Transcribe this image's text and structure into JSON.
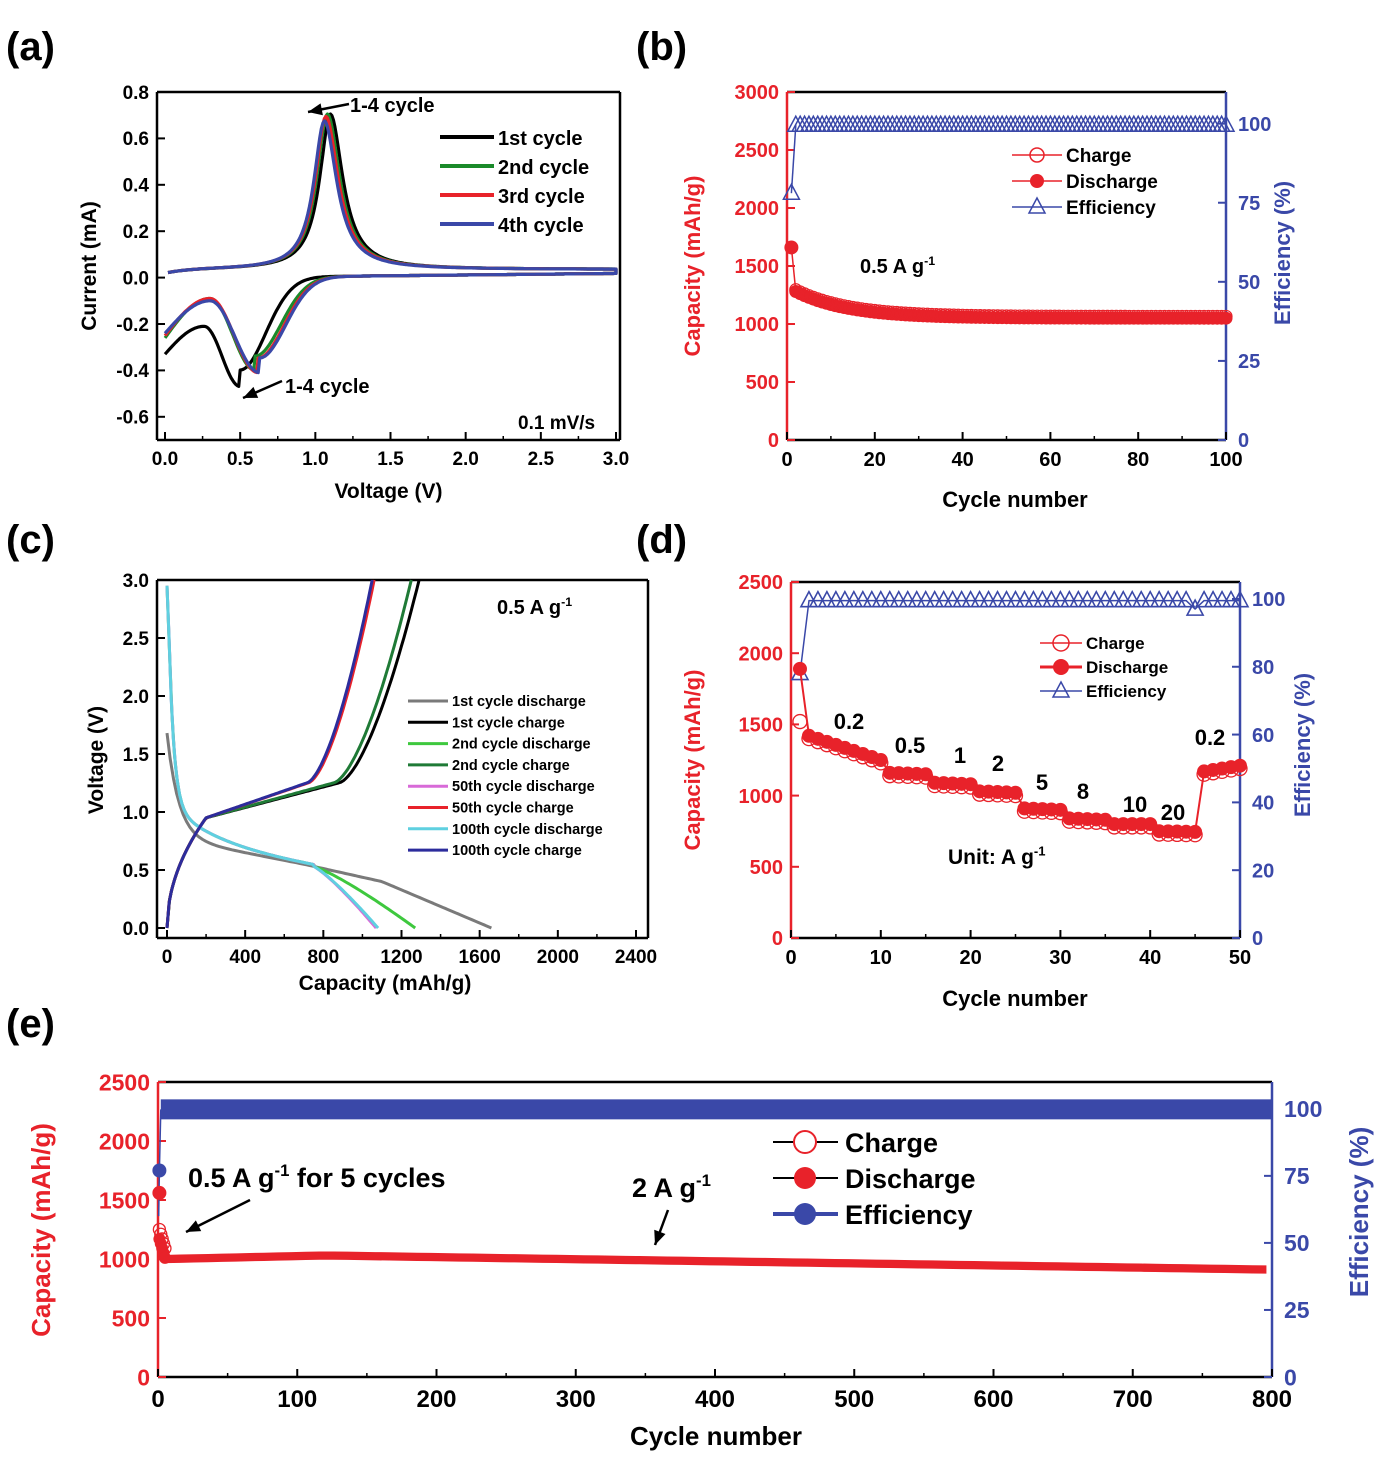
{
  "panel_labels": {
    "a": "(a)",
    "b": "(b)",
    "c": "(c)",
    "d": "(d)",
    "e": "(e)"
  },
  "colors": {
    "black": "#000000",
    "green": "#1a8a2a",
    "red": "#e8222a",
    "blue": "#3a48a8",
    "gray": "#7a7a7a",
    "light_green": "#3ec83e",
    "dark_green": "#1f7a36",
    "magenta": "#d86ad8",
    "cyan": "#5fd0e0",
    "navy": "#2c2c9c"
  },
  "chart_data": [
    {
      "id": "a",
      "type": "line",
      "xlabel": "Voltage (V)",
      "ylabel": "Current  (mA)",
      "xlim": [
        0.0,
        3.0
      ],
      "ylim": [
        -0.7,
        0.8
      ],
      "xticks": [
        "0.0",
        "0.5",
        "1.0",
        "1.5",
        "2.0",
        "2.5",
        "3.0"
      ],
      "yticks": [
        "-0.6",
        "-0.4",
        "-0.2",
        "0.0",
        "0.2",
        "0.4",
        "0.6",
        "0.8"
      ],
      "legend": [
        "1st cycle",
        "2nd cycle",
        "3rd cycle",
        "4th cycle"
      ],
      "annotations": [
        "1-4 cycle",
        "1-4 cycle",
        "0.1 mV/s"
      ],
      "series": [
        {
          "name": "1st cycle",
          "color": "black",
          "peak_ox": [
            1.1,
            0.7
          ],
          "peak_red": [
            0.5,
            -0.47
          ],
          "start": [
            0.0,
            -0.33
          ],
          "shoulder": [
            0.26,
            -0.21
          ]
        },
        {
          "name": "2nd cycle",
          "color": "green",
          "peak_ox": [
            1.08,
            0.7
          ],
          "peak_red": [
            0.6,
            -0.4
          ],
          "start": [
            0.0,
            -0.26
          ],
          "shoulder": [
            0.3,
            -0.09
          ]
        },
        {
          "name": "3rd cycle",
          "color": "red",
          "peak_ox": [
            1.07,
            0.69
          ],
          "peak_red": [
            0.62,
            -0.41
          ],
          "start": [
            0.0,
            -0.25
          ],
          "shoulder": [
            0.3,
            -0.09
          ]
        },
        {
          "name": "4th cycle",
          "color": "blue",
          "peak_ox": [
            1.06,
            0.67
          ],
          "peak_red": [
            0.63,
            -0.41
          ],
          "start": [
            0.0,
            -0.24
          ],
          "shoulder": [
            0.3,
            -0.1
          ]
        }
      ]
    },
    {
      "id": "b",
      "type": "scatter",
      "xlabel": "Cycle number",
      "ylabel": "Capacity (mAh/g)",
      "y2label": "Efficiency (%)",
      "xlim": [
        0,
        100
      ],
      "ylim": [
        0,
        3000
      ],
      "y2lim": [
        0,
        110
      ],
      "xticks": [
        "0",
        "20",
        "40",
        "60",
        "80",
        "100"
      ],
      "yticks": [
        "0",
        "500",
        "1000",
        "1500",
        "2000",
        "2500",
        "3000"
      ],
      "y2ticks": [
        "0",
        "25",
        "50",
        "75",
        "100"
      ],
      "legend": [
        "Charge",
        "Discharge",
        "Efficiency"
      ],
      "annotation": "0.5 A g",
      "annotation_sup": "-1",
      "discharge_first": 1660,
      "capacity_start": 1280,
      "capacity_end": 1050,
      "efficiency_first": 78,
      "efficiency_rest": 99.5
    },
    {
      "id": "c",
      "type": "line",
      "xlabel": "Capacity (mAh/g)",
      "ylabel": "Voltage (V)",
      "xlim": [
        0,
        2400
      ],
      "ylim": [
        0.0,
        3.0
      ],
      "xticks": [
        "0",
        "400",
        "800",
        "1200",
        "1600",
        "2000",
        "2400"
      ],
      "yticks": [
        "0.0",
        "0.5",
        "1.0",
        "1.5",
        "2.0",
        "2.5",
        "3.0"
      ],
      "annotation": "0.5 A g",
      "annotation_sup": "-1",
      "legend": [
        "1st cycle discharge",
        "1st cycle charge",
        "2nd cycle discharge",
        "2nd cycle charge",
        "50th cycle discharge",
        "50th cycle charge",
        "100th cycle discharge",
        "100th cycle charge"
      ],
      "series": [
        {
          "name": "1st cycle discharge",
          "color": "gray",
          "end_capacity": 1660
        },
        {
          "name": "1st cycle charge",
          "color": "black",
          "end_capacity": 1290
        },
        {
          "name": "2nd cycle discharge",
          "color": "light_green",
          "end_capacity": 1270
        },
        {
          "name": "2nd cycle charge",
          "color": "dark_green",
          "end_capacity": 1250
        },
        {
          "name": "50th cycle discharge",
          "color": "magenta",
          "end_capacity": 1070
        },
        {
          "name": "50th cycle charge",
          "color": "red",
          "end_capacity": 1060
        },
        {
          "name": "100th cycle discharge",
          "color": "cyan",
          "end_capacity": 1080
        },
        {
          "name": "100th cycle charge",
          "color": "navy",
          "end_capacity": 1050
        }
      ]
    },
    {
      "id": "d",
      "type": "scatter",
      "xlabel": "Cycle number",
      "ylabel": "Capacity (mAh/g)",
      "y2label": "Efficiency (%)",
      "xlim": [
        0,
        50
      ],
      "ylim": [
        0,
        2500
      ],
      "y2lim": [
        0,
        105
      ],
      "xticks": [
        "0",
        "10",
        "20",
        "30",
        "40",
        "50"
      ],
      "yticks": [
        "0",
        "500",
        "1000",
        "1500",
        "2000",
        "2500"
      ],
      "y2ticks": [
        "0",
        "20",
        "40",
        "60",
        "80",
        "100"
      ],
      "legend": [
        "Charge",
        "Discharge",
        "Efficiency"
      ],
      "unit_label": "Unit: A g",
      "unit_sup": "-1",
      "rate_segments": [
        {
          "label": "0.2",
          "start": 1,
          "end": 10,
          "cap_start": 1420,
          "cap_end": 1250
        },
        {
          "label": "0.5",
          "start": 11,
          "end": 15,
          "cap_start": 1160,
          "cap_end": 1150
        },
        {
          "label": "1",
          "start": 16,
          "end": 20,
          "cap_start": 1090,
          "cap_end": 1080
        },
        {
          "label": "2",
          "start": 21,
          "end": 25,
          "cap_start": 1030,
          "cap_end": 1020
        },
        {
          "label": "5",
          "start": 26,
          "end": 30,
          "cap_start": 910,
          "cap_end": 900
        },
        {
          "label": "8",
          "start": 31,
          "end": 35,
          "cap_start": 840,
          "cap_end": 830
        },
        {
          "label": "10",
          "start": 36,
          "end": 40,
          "cap_start": 800,
          "cap_end": 800
        },
        {
          "label": "20",
          "start": 41,
          "end": 45,
          "cap_start": 750,
          "cap_end": 745
        },
        {
          "label": "0.2",
          "start": 46,
          "end": 50,
          "cap_start": 1170,
          "cap_end": 1210
        }
      ],
      "discharge_first": 1890,
      "charge_first": 1520,
      "efficiency_first": 78,
      "efficiency_rest": 99.5
    },
    {
      "id": "e",
      "type": "scatter",
      "xlabel": "Cycle number",
      "ylabel": "Capacity (mAh/g)",
      "y2label": "Efficiency (%)",
      "xlim": [
        0,
        800
      ],
      "ylim": [
        0,
        2500
      ],
      "y2lim": [
        0,
        110
      ],
      "xticks": [
        "0",
        "100",
        "200",
        "300",
        "400",
        "500",
        "600",
        "700",
        "800"
      ],
      "yticks": [
        "0",
        "500",
        "1000",
        "1500",
        "2000",
        "2500"
      ],
      "y2ticks": [
        "0",
        "25",
        "50",
        "75",
        "100"
      ],
      "legend": [
        "Charge",
        "Discharge",
        "Efficiency"
      ],
      "annotation1": "0.5 A g",
      "annotation1_sup": "-1",
      "annotation1_tail": " for 5 cycles",
      "annotation2": "2 A g",
      "annotation2_sup": "-1",
      "discharge_first": 1560,
      "efficiency_first": 77,
      "efficiency_rest": 99.8,
      "capacity_start": 1000,
      "capacity_mid": 1030,
      "capacity_end": 910
    }
  ]
}
